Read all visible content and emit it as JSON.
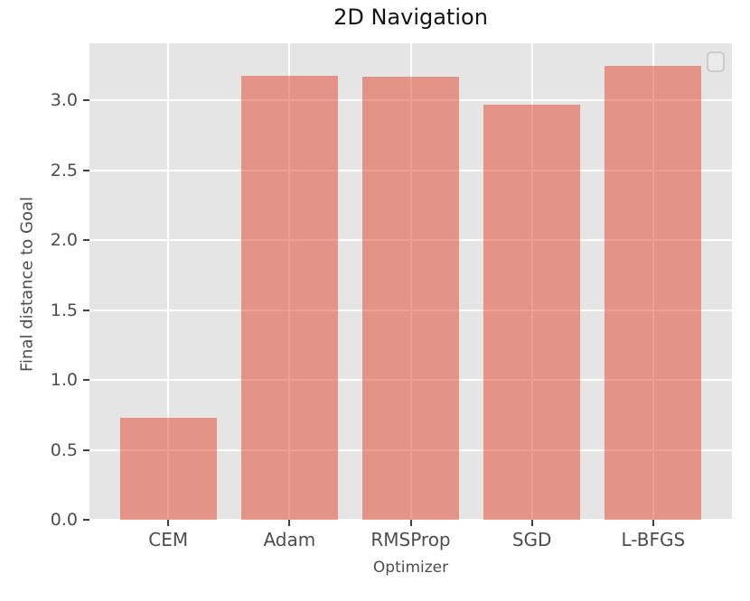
{
  "chart_data": {
    "type": "bar",
    "title": "2D Navigation",
    "xlabel": "Optimizer",
    "ylabel": "Final distance to Goal",
    "categories": [
      "CEM",
      "Adam",
      "RMSProp",
      "SGD",
      "L-BFGS"
    ],
    "values": [
      0.73,
      3.18,
      3.17,
      2.97,
      3.25
    ],
    "yticks": [
      0.0,
      0.5,
      1.0,
      1.5,
      2.0,
      2.5,
      3.0
    ],
    "ytick_labels": [
      "0.0",
      "0.5",
      "1.0",
      "1.5",
      "2.0",
      "2.5",
      "3.0"
    ],
    "ylim": [
      0,
      3.41
    ],
    "grid": true,
    "legend": "empty-box-top-right",
    "style": "ggplot",
    "colors": {
      "bar": "#E24A33",
      "bar_alpha": 0.53,
      "plot_background": "#e5e5e5",
      "gridline": "#ffffff",
      "tick_label": "#4d4d4d",
      "title": "#141414"
    }
  }
}
